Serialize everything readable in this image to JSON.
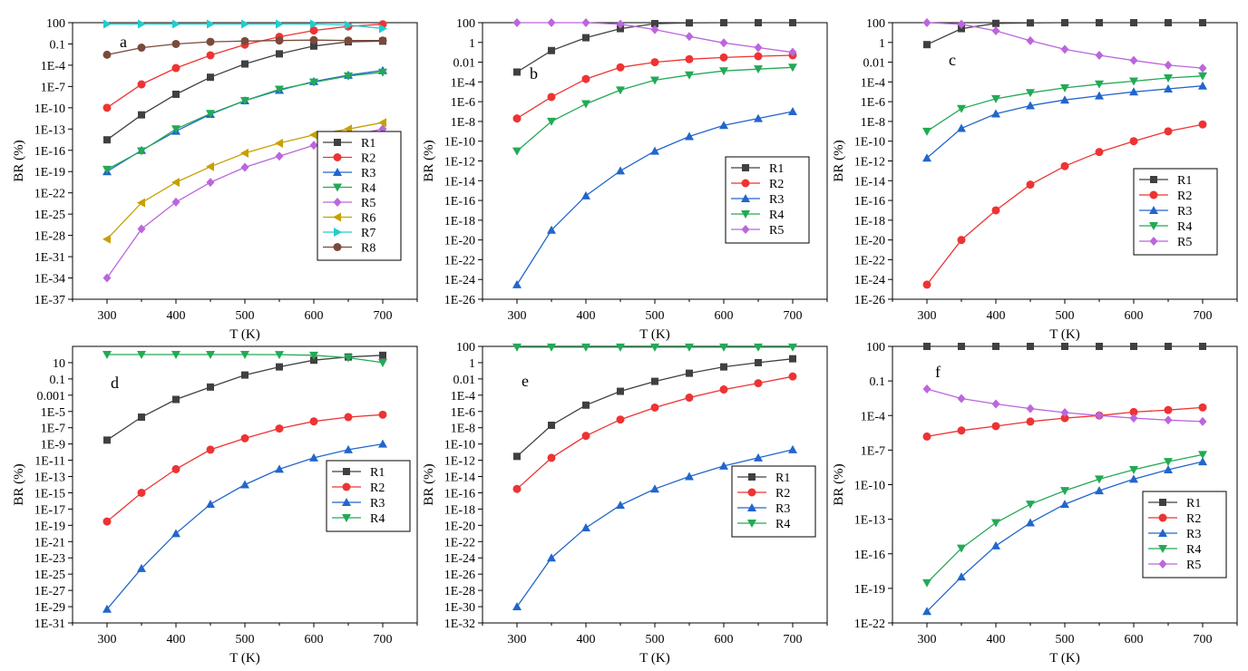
{
  "chart_data": [
    {
      "type": "line",
      "panel_label": "a",
      "xlabel": "T (K)",
      "ylabel": "BR (%)",
      "xlim": [
        250,
        750
      ],
      "ylim": [
        1e-37,
        100
      ],
      "yscale": "log",
      "xticks": [
        300,
        400,
        500,
        600,
        700
      ],
      "yticks": [
        {
          "v": 100,
          "label": "100"
        },
        {
          "v": 0.1,
          "label": "0.1"
        },
        {
          "v": 0.0001,
          "label": "1E-4"
        },
        {
          "v": 1e-07,
          "label": "1E-7"
        },
        {
          "v": 1e-10,
          "label": "1E-10"
        },
        {
          "v": 1e-13,
          "label": "1E-13"
        },
        {
          "v": 1e-16,
          "label": "1E-16"
        },
        {
          "v": 1e-19,
          "label": "1E-19"
        },
        {
          "v": 1e-22,
          "label": "1E-22"
        },
        {
          "v": 1e-25,
          "label": "1E-25"
        },
        {
          "v": 1e-28,
          "label": "1E-28"
        },
        {
          "v": 1e-31,
          "label": "1E-31"
        },
        {
          "v": 1e-34,
          "label": "1E-34"
        },
        {
          "v": 1e-37,
          "label": "1E-37"
        }
      ],
      "legend_position": "right",
      "x": [
        300,
        350,
        400,
        450,
        500,
        550,
        600,
        650,
        700
      ],
      "series": [
        {
          "name": "R1",
          "color": "#404040",
          "marker": "square",
          "values": [
            3e-15,
            1e-11,
            8e-09,
            2e-06,
            0.00015,
            0.004,
            0.05,
            0.2,
            0.25
          ]
        },
        {
          "name": "R2",
          "color": "#ee3333",
          "marker": "circle",
          "values": [
            1e-10,
            2e-07,
            4e-05,
            0.0025,
            0.08,
            1,
            8,
            30,
            60
          ]
        },
        {
          "name": "R3",
          "color": "#2266cc",
          "marker": "triangle-up",
          "values": [
            1e-19,
            1e-16,
            5e-14,
            1.2e-11,
            1e-09,
            3e-08,
            5e-07,
            4e-06,
            1.8e-05
          ]
        },
        {
          "name": "R4",
          "color": "#22aa55",
          "marker": "triangle-down",
          "values": [
            2e-19,
            8e-17,
            1e-13,
            1.5e-11,
            1e-09,
            4e-08,
            4e-07,
            3e-06,
            1e-05
          ]
        },
        {
          "name": "R5",
          "color": "#bb66dd",
          "marker": "diamond",
          "values": [
            1e-34,
            8e-28,
            5e-24,
            3e-21,
            4e-19,
            1.5e-17,
            5e-16,
            1e-14,
            1e-13
          ]
        },
        {
          "name": "R6",
          "color": "#c8a000",
          "marker": "triangle-left",
          "values": [
            3e-29,
            4e-24,
            3e-21,
            5e-19,
            4e-17,
            1e-15,
            1.5e-14,
            1e-13,
            8e-13
          ]
        },
        {
          "name": "R7",
          "color": "#22cccc",
          "marker": "triangle-right",
          "values": [
            65,
            65,
            65,
            65,
            65,
            65,
            65,
            45,
            15
          ]
        },
        {
          "name": "R8",
          "color": "#7a4a3a",
          "marker": "circle",
          "values": [
            0.003,
            0.03,
            0.1,
            0.2,
            0.25,
            0.3,
            0.35,
            0.3,
            0.3
          ]
        }
      ]
    },
    {
      "type": "line",
      "panel_label": "b",
      "xlabel": "T (K)",
      "ylabel": "BR (%)",
      "xlim": [
        250,
        750
      ],
      "ylim": [
        1e-26,
        100
      ],
      "yscale": "log",
      "xticks": [
        300,
        400,
        500,
        600,
        700
      ],
      "yticks": [
        {
          "v": 100,
          "label": "100"
        },
        {
          "v": 1,
          "label": "1"
        },
        {
          "v": 0.01,
          "label": "0.01"
        },
        {
          "v": 0.0001,
          "label": "1E-4"
        },
        {
          "v": 1e-06,
          "label": "1E-6"
        },
        {
          "v": 1e-08,
          "label": "1E-8"
        },
        {
          "v": 1e-10,
          "label": "1E-10"
        },
        {
          "v": 1e-12,
          "label": "1E-12"
        },
        {
          "v": 1e-14,
          "label": "1E-14"
        },
        {
          "v": 1e-16,
          "label": "1E-16"
        },
        {
          "v": 1e-18,
          "label": "1E-18"
        },
        {
          "v": 1e-20,
          "label": "1E-20"
        },
        {
          "v": 1e-22,
          "label": "1E-22"
        },
        {
          "v": 1e-24,
          "label": "1E-24"
        },
        {
          "v": 1e-26,
          "label": "1E-26"
        }
      ],
      "legend_position": "right",
      "x": [
        300,
        350,
        400,
        450,
        500,
        550,
        600,
        650,
        700
      ],
      "series": [
        {
          "name": "R1",
          "color": "#404040",
          "marker": "square",
          "values": [
            0.001,
            0.15,
            3,
            25,
            80,
            95,
            99,
            99,
            99
          ]
        },
        {
          "name": "R2",
          "color": "#ee3333",
          "marker": "circle",
          "values": [
            2e-08,
            3e-06,
            0.0002,
            0.003,
            0.01,
            0.02,
            0.03,
            0.04,
            0.05
          ]
        },
        {
          "name": "R3",
          "color": "#2266cc",
          "marker": "triangle-up",
          "values": [
            3e-25,
            1e-19,
            3e-16,
            1e-13,
            1e-11,
            3e-10,
            4e-09,
            2e-08,
            1e-07
          ]
        },
        {
          "name": "R4",
          "color": "#22aa55",
          "marker": "triangle-down",
          "values": [
            1e-11,
            1e-08,
            6e-07,
            1.5e-05,
            0.00015,
            0.0005,
            0.0013,
            0.002,
            0.003
          ]
        },
        {
          "name": "R5",
          "color": "#bb66dd",
          "marker": "diamond",
          "values": [
            100,
            100,
            100,
            70,
            20,
            4,
            0.9,
            0.3,
            0.1
          ]
        }
      ]
    },
    {
      "type": "line",
      "panel_label": "c",
      "xlabel": "T (K)",
      "ylabel": "BR (%)",
      "xlim": [
        250,
        750
      ],
      "ylim": [
        1e-26,
        100
      ],
      "yscale": "log",
      "xticks": [
        300,
        400,
        500,
        600,
        700
      ],
      "yticks": [
        {
          "v": 100,
          "label": "100"
        },
        {
          "v": 1,
          "label": "1"
        },
        {
          "v": 0.01,
          "label": "0.01"
        },
        {
          "v": 0.0001,
          "label": "1E-4"
        },
        {
          "v": 1e-06,
          "label": "1E-6"
        },
        {
          "v": 1e-08,
          "label": "1E-8"
        },
        {
          "v": 1e-10,
          "label": "1E-10"
        },
        {
          "v": 1e-12,
          "label": "1E-12"
        },
        {
          "v": 1e-14,
          "label": "1E-14"
        },
        {
          "v": 1e-16,
          "label": "1E-16"
        },
        {
          "v": 1e-18,
          "label": "1E-18"
        },
        {
          "v": 1e-20,
          "label": "1E-20"
        },
        {
          "v": 1e-22,
          "label": "1E-22"
        },
        {
          "v": 1e-24,
          "label": "1E-24"
        },
        {
          "v": 1e-26,
          "label": "1E-26"
        }
      ],
      "legend_position": "right",
      "x": [
        300,
        350,
        400,
        450,
        500,
        550,
        600,
        650,
        700
      ],
      "series": [
        {
          "name": "R1",
          "color": "#404040",
          "marker": "square",
          "values": [
            0.6,
            25,
            85,
            95,
            99,
            99,
            99,
            99,
            99
          ]
        },
        {
          "name": "R2",
          "color": "#ee3333",
          "marker": "circle",
          "values": [
            3e-25,
            1e-20,
            1e-17,
            4e-15,
            3e-13,
            8e-12,
            1e-10,
            1e-09,
            5e-09
          ]
        },
        {
          "name": "R3",
          "color": "#2266cc",
          "marker": "triangle-up",
          "values": [
            2e-12,
            2e-09,
            6e-08,
            4e-07,
            1.5e-06,
            4e-06,
            1e-05,
            2e-05,
            4e-05
          ]
        },
        {
          "name": "R4",
          "color": "#22aa55",
          "marker": "triangle-down",
          "values": [
            1e-09,
            2e-07,
            2e-06,
            8e-06,
            2.5e-05,
            6e-05,
            0.00012,
            0.00025,
            0.0004
          ]
        },
        {
          "name": "R5",
          "color": "#bb66dd",
          "marker": "diamond",
          "values": [
            100,
            70,
            15,
            1.5,
            0.2,
            0.05,
            0.015,
            0.005,
            0.0025
          ]
        }
      ]
    },
    {
      "type": "line",
      "panel_label": "d",
      "xlabel": "T (K)",
      "ylabel": "BR (%)",
      "xlim": [
        250,
        750
      ],
      "ylim": [
        1e-31,
        1000
      ],
      "yscale": "log",
      "xticks": [
        300,
        400,
        500,
        600,
        700
      ],
      "yticks": [
        {
          "v": 10,
          "label": "10"
        },
        {
          "v": 0.1,
          "label": "0.1"
        },
        {
          "v": 0.001,
          "label": "0.001"
        },
        {
          "v": 1e-05,
          "label": "1E-5"
        },
        {
          "v": 1e-07,
          "label": "1E-7"
        },
        {
          "v": 1e-09,
          "label": "1E-9"
        },
        {
          "v": 1e-11,
          "label": "1E-11"
        },
        {
          "v": 1e-13,
          "label": "1E-13"
        },
        {
          "v": 1e-15,
          "label": "1E-15"
        },
        {
          "v": 1e-17,
          "label": "1E-17"
        },
        {
          "v": 1e-19,
          "label": "1E-19"
        },
        {
          "v": 1e-21,
          "label": "1E-21"
        },
        {
          "v": 1e-23,
          "label": "1E-23"
        },
        {
          "v": 1e-25,
          "label": "1E-25"
        },
        {
          "v": 1e-27,
          "label": "1E-27"
        },
        {
          "v": 1e-29,
          "label": "1E-29"
        },
        {
          "v": 1e-31,
          "label": "1E-31"
        }
      ],
      "legend_position": "right",
      "x": [
        300,
        350,
        400,
        450,
        500,
        550,
        600,
        650,
        700
      ],
      "series": [
        {
          "name": "R1",
          "color": "#404040",
          "marker": "square",
          "values": [
            3e-09,
            2e-06,
            0.0003,
            0.01,
            0.3,
            3,
            20,
            50,
            80
          ]
        },
        {
          "name": "R2",
          "color": "#ee3333",
          "marker": "circle",
          "values": [
            3e-19,
            1e-15,
            8e-13,
            2e-10,
            5e-09,
            8e-08,
            6e-07,
            2e-06,
            4e-06
          ]
        },
        {
          "name": "R3",
          "color": "#2266cc",
          "marker": "triangle-up",
          "values": [
            5e-30,
            5e-25,
            1e-20,
            4e-17,
            1e-14,
            8e-13,
            2e-11,
            2e-10,
            1e-09
          ]
        },
        {
          "name": "R4",
          "color": "#22aa55",
          "marker": "triangle-down",
          "values": [
            100,
            100,
            100,
            100,
            100,
            97,
            80,
            40,
            10
          ]
        }
      ]
    },
    {
      "type": "line",
      "panel_label": "e",
      "xlabel": "T (K)",
      "ylabel": "BR (%)",
      "xlim": [
        250,
        750
      ],
      "ylim": [
        1e-32,
        100
      ],
      "yscale": "log",
      "xticks": [
        300,
        400,
        500,
        600,
        700
      ],
      "yticks": [
        {
          "v": 100,
          "label": "100"
        },
        {
          "v": 1,
          "label": "1"
        },
        {
          "v": 0.01,
          "label": "0.01"
        },
        {
          "v": 0.0001,
          "label": "1E-4"
        },
        {
          "v": 1e-06,
          "label": "1E-6"
        },
        {
          "v": 1e-08,
          "label": "1E-8"
        },
        {
          "v": 1e-10,
          "label": "1E-10"
        },
        {
          "v": 1e-12,
          "label": "1E-12"
        },
        {
          "v": 1e-14,
          "label": "1E-14"
        },
        {
          "v": 1e-16,
          "label": "1E-16"
        },
        {
          "v": 1e-18,
          "label": "1E-18"
        },
        {
          "v": 1e-20,
          "label": "1E-20"
        },
        {
          "v": 1e-22,
          "label": "1E-22"
        },
        {
          "v": 1e-24,
          "label": "1E-24"
        },
        {
          "v": 1e-26,
          "label": "1E-26"
        },
        {
          "v": 1e-28,
          "label": "1E-28"
        },
        {
          "v": 1e-30,
          "label": "1E-30"
        },
        {
          "v": 1e-32,
          "label": "1E-32"
        }
      ],
      "legend_position": "right",
      "x": [
        300,
        350,
        400,
        450,
        500,
        550,
        600,
        650,
        700
      ],
      "series": [
        {
          "name": "R1",
          "color": "#404040",
          "marker": "square",
          "values": [
            3e-12,
            2e-08,
            6e-06,
            0.0003,
            0.005,
            0.05,
            0.3,
            1,
            3
          ]
        },
        {
          "name": "R2",
          "color": "#ee3333",
          "marker": "circle",
          "values": [
            3e-16,
            2e-12,
            1e-09,
            1e-07,
            3e-06,
            5e-05,
            0.0005,
            0.003,
            0.02
          ]
        },
        {
          "name": "R3",
          "color": "#2266cc",
          "marker": "triangle-up",
          "values": [
            1e-30,
            1e-24,
            5e-21,
            3e-18,
            3e-16,
            1e-14,
            2e-13,
            2e-12,
            2e-11
          ]
        },
        {
          "name": "R4",
          "color": "#22aa55",
          "marker": "triangle-down",
          "values": [
            80,
            80,
            80,
            80,
            80,
            80,
            80,
            80,
            80
          ]
        }
      ]
    },
    {
      "type": "line",
      "panel_label": "f",
      "xlabel": "T (K)",
      "ylabel": "BR (%)",
      "xlim": [
        250,
        750
      ],
      "ylim": [
        1e-22,
        100
      ],
      "yscale": "log",
      "xticks": [
        300,
        400,
        500,
        600,
        700
      ],
      "yticks": [
        {
          "v": 100,
          "label": "100"
        },
        {
          "v": 0.1,
          "label": "0.1"
        },
        {
          "v": 0.0001,
          "label": "1E-4"
        },
        {
          "v": 1e-07,
          "label": "1E-7"
        },
        {
          "v": 1e-10,
          "label": "1E-10"
        },
        {
          "v": 1e-13,
          "label": "1E-13"
        },
        {
          "v": 1e-16,
          "label": "1E-16"
        },
        {
          "v": 1e-19,
          "label": "1E-19"
        },
        {
          "v": 1e-22,
          "label": "1E-22"
        }
      ],
      "legend_position": "right",
      "x": [
        300,
        350,
        400,
        450,
        500,
        550,
        600,
        650,
        700
      ],
      "series": [
        {
          "name": "R1",
          "color": "#404040",
          "marker": "square",
          "values": [
            99.9,
            99.9,
            99.9,
            99.9,
            99.9,
            99.9,
            99.9,
            99.9,
            99.9
          ]
        },
        {
          "name": "R2",
          "color": "#ee3333",
          "marker": "circle",
          "values": [
            1.5e-06,
            5e-06,
            1.2e-05,
            3e-05,
            6e-05,
            0.0001,
            0.0002,
            0.0003,
            0.0005
          ]
        },
        {
          "name": "R3",
          "color": "#2266cc",
          "marker": "triangle-up",
          "values": [
            1e-21,
            1e-18,
            5e-16,
            5e-14,
            2e-12,
            3e-11,
            3e-10,
            2e-09,
            1e-08
          ]
        },
        {
          "name": "R4",
          "color": "#22aa55",
          "marker": "triangle-down",
          "values": [
            3e-19,
            3e-16,
            5e-14,
            2e-12,
            3e-11,
            3e-10,
            2e-09,
            1e-08,
            4e-08
          ]
        },
        {
          "name": "R5",
          "color": "#bb66dd",
          "marker": "diamond",
          "values": [
            0.02,
            0.003,
            0.001,
            0.0004,
            0.00018,
            0.0001,
            6e-05,
            4e-05,
            3e-05
          ]
        }
      ]
    }
  ]
}
